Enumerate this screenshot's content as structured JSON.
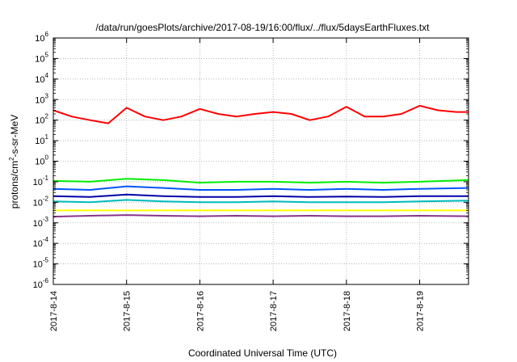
{
  "chart_data": {
    "type": "line",
    "title": "/data/run/goesPlots/archive/2017-08-19/16:00/flux/../flux/5daysEarthFluxes.txt",
    "xlabel": "Coordinated Universal Time (UTC)",
    "ylabel": {
      "base": "protons/cm",
      "sup": "2",
      "rest": "-s-sr-MeV"
    },
    "y_scale": "log",
    "ylim": [
      1e-06,
      1000000.0
    ],
    "y_ticks": [
      {
        "value": 1e-06,
        "base": "10",
        "exp": "-6"
      },
      {
        "value": 1e-05,
        "base": "10",
        "exp": "-5"
      },
      {
        "value": 0.0001,
        "base": "10",
        "exp": "-4"
      },
      {
        "value": 0.001,
        "base": "10",
        "exp": "-3"
      },
      {
        "value": 0.01,
        "base": "10",
        "exp": "-2"
      },
      {
        "value": 0.1,
        "base": "10",
        "exp": "-1"
      },
      {
        "value": 1,
        "base": "10",
        "exp": "0"
      },
      {
        "value": 10,
        "base": "10",
        "exp": "1"
      },
      {
        "value": 100,
        "base": "10",
        "exp": "2"
      },
      {
        "value": 1000,
        "base": "10",
        "exp": "3"
      },
      {
        "value": 10000,
        "base": "10",
        "exp": "4"
      },
      {
        "value": 100000,
        "base": "10",
        "exp": "5"
      },
      {
        "value": 1000000,
        "base": "10",
        "exp": "6"
      }
    ],
    "xlim": [
      "2017-08-14",
      "2017-08-19T16:00"
    ],
    "x_ticks": [
      "2017-8-14",
      "2017-8-15",
      "2017-8-16",
      "2017-8-17",
      "2017-8-18",
      "2017-8-19"
    ],
    "grid": true,
    "series": [
      {
        "color": "#ff0000",
        "points": [
          [
            "2017-08-14T00:00",
            300
          ],
          [
            "2017-08-14T06:00",
            150
          ],
          [
            "2017-08-14T12:00",
            100
          ],
          [
            "2017-08-14T18:00",
            70
          ],
          [
            "2017-08-15T00:00",
            400
          ],
          [
            "2017-08-15T06:00",
            150
          ],
          [
            "2017-08-15T12:00",
            100
          ],
          [
            "2017-08-15T18:00",
            150
          ],
          [
            "2017-08-16T00:00",
            350
          ],
          [
            "2017-08-16T06:00",
            200
          ],
          [
            "2017-08-16T12:00",
            150
          ],
          [
            "2017-08-16T18:00",
            200
          ],
          [
            "2017-08-17T00:00",
            250
          ],
          [
            "2017-08-17T06:00",
            200
          ],
          [
            "2017-08-17T12:00",
            100
          ],
          [
            "2017-08-17T18:00",
            150
          ],
          [
            "2017-08-18T00:00",
            450
          ],
          [
            "2017-08-18T06:00",
            150
          ],
          [
            "2017-08-18T12:00",
            150
          ],
          [
            "2017-08-18T18:00",
            200
          ],
          [
            "2017-08-19T00:00",
            500
          ],
          [
            "2017-08-19T06:00",
            300
          ],
          [
            "2017-08-19T12:00",
            250
          ],
          [
            "2017-08-19T16:00",
            250
          ]
        ]
      },
      {
        "color": "#00ee00",
        "points": [
          [
            "2017-08-14T00:00",
            0.11
          ],
          [
            "2017-08-14T12:00",
            0.1
          ],
          [
            "2017-08-15T00:00",
            0.14
          ],
          [
            "2017-08-15T12:00",
            0.12
          ],
          [
            "2017-08-16T00:00",
            0.09
          ],
          [
            "2017-08-16T12:00",
            0.1
          ],
          [
            "2017-08-17T00:00",
            0.1
          ],
          [
            "2017-08-17T12:00",
            0.09
          ],
          [
            "2017-08-18T00:00",
            0.1
          ],
          [
            "2017-08-18T12:00",
            0.09
          ],
          [
            "2017-08-19T00:00",
            0.1
          ],
          [
            "2017-08-19T16:00",
            0.12
          ]
        ]
      },
      {
        "color": "#0055ff",
        "points": [
          [
            "2017-08-14T00:00",
            0.045
          ],
          [
            "2017-08-14T12:00",
            0.04
          ],
          [
            "2017-08-15T00:00",
            0.06
          ],
          [
            "2017-08-15T12:00",
            0.05
          ],
          [
            "2017-08-16T00:00",
            0.04
          ],
          [
            "2017-08-16T12:00",
            0.04
          ],
          [
            "2017-08-17T00:00",
            0.045
          ],
          [
            "2017-08-17T12:00",
            0.04
          ],
          [
            "2017-08-18T00:00",
            0.045
          ],
          [
            "2017-08-18T12:00",
            0.04
          ],
          [
            "2017-08-19T00:00",
            0.045
          ],
          [
            "2017-08-19T16:00",
            0.05
          ]
        ]
      },
      {
        "color": "#00bbbb",
        "points": [
          [
            "2017-08-14T00:00",
            0.011
          ],
          [
            "2017-08-14T12:00",
            0.01
          ],
          [
            "2017-08-15T00:00",
            0.013
          ],
          [
            "2017-08-15T12:00",
            0.011
          ],
          [
            "2017-08-16T00:00",
            0.01
          ],
          [
            "2017-08-16T12:00",
            0.01
          ],
          [
            "2017-08-17T00:00",
            0.011
          ],
          [
            "2017-08-17T12:00",
            0.01
          ],
          [
            "2017-08-18T00:00",
            0.01
          ],
          [
            "2017-08-18T12:00",
            0.01
          ],
          [
            "2017-08-19T00:00",
            0.011
          ],
          [
            "2017-08-19T16:00",
            0.012
          ]
        ]
      },
      {
        "color": "#0000aa",
        "points": [
          [
            "2017-08-14T00:00",
            0.02
          ],
          [
            "2017-08-14T12:00",
            0.018
          ],
          [
            "2017-08-15T00:00",
            0.024
          ],
          [
            "2017-08-15T12:00",
            0.02
          ],
          [
            "2017-08-16T00:00",
            0.018
          ],
          [
            "2017-08-16T12:00",
            0.018
          ],
          [
            "2017-08-17T00:00",
            0.02
          ],
          [
            "2017-08-17T12:00",
            0.018
          ],
          [
            "2017-08-18T00:00",
            0.019
          ],
          [
            "2017-08-18T12:00",
            0.018
          ],
          [
            "2017-08-19T00:00",
            0.02
          ],
          [
            "2017-08-19T16:00",
            0.02
          ]
        ]
      },
      {
        "color": "#ffff00",
        "points": [
          [
            "2017-08-14T00:00",
            0.004
          ],
          [
            "2017-08-15T00:00",
            0.004
          ],
          [
            "2017-08-16T00:00",
            0.004
          ],
          [
            "2017-08-17T00:00",
            0.004
          ],
          [
            "2017-08-18T00:00",
            0.004
          ],
          [
            "2017-08-19T00:00",
            0.004
          ],
          [
            "2017-08-19T16:00",
            0.004
          ]
        ]
      },
      {
        "color": "#883388",
        "points": [
          [
            "2017-08-14T00:00",
            0.002
          ],
          [
            "2017-08-14T12:00",
            0.0022
          ],
          [
            "2017-08-15T00:00",
            0.0024
          ],
          [
            "2017-08-15T12:00",
            0.0022
          ],
          [
            "2017-08-16T00:00",
            0.0021
          ],
          [
            "2017-08-16T12:00",
            0.0022
          ],
          [
            "2017-08-17T00:00",
            0.0021
          ],
          [
            "2017-08-17T12:00",
            0.0022
          ],
          [
            "2017-08-18T00:00",
            0.0021
          ],
          [
            "2017-08-18T12:00",
            0.0021
          ],
          [
            "2017-08-19T00:00",
            0.0022
          ],
          [
            "2017-08-19T16:00",
            0.0021
          ]
        ]
      }
    ]
  }
}
